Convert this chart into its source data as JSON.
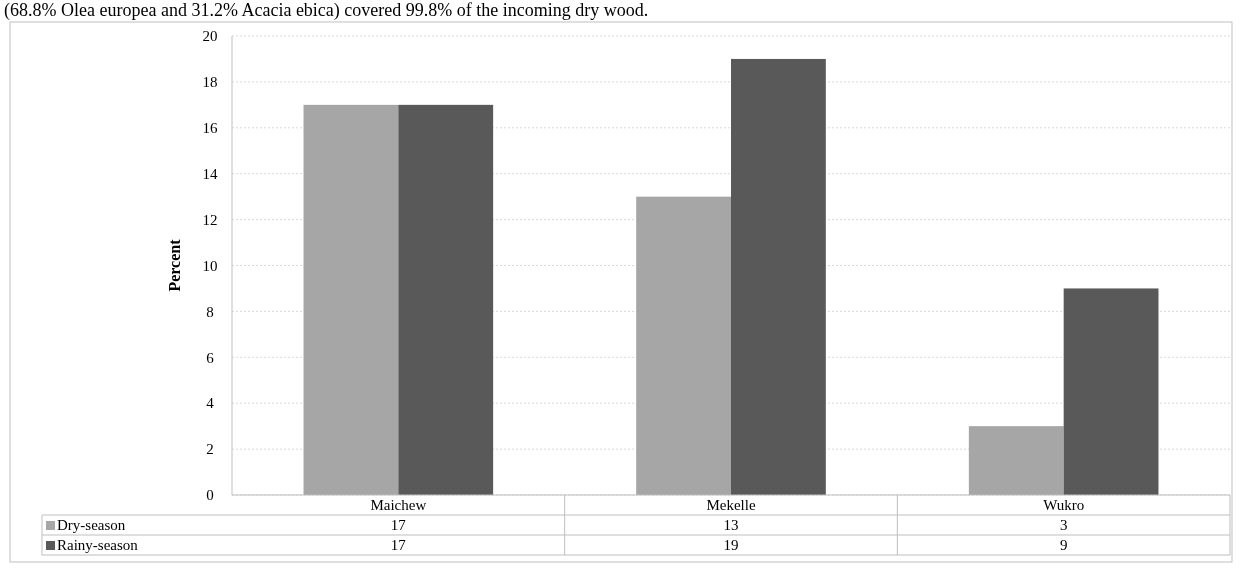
{
  "chart_data": {
    "type": "bar",
    "ylabel": "Percent",
    "categories": [
      "Maichew",
      "Mekelle",
      "Wukro"
    ],
    "series": [
      {
        "name": "Dry-season",
        "color": "#a6a6a6",
        "values": [
          17,
          13,
          3
        ]
      },
      {
        "name": "Rainy-season",
        "color": "#595959",
        "values": [
          17,
          19,
          9
        ]
      }
    ],
    "ylim": [
      0,
      20
    ],
    "yticks": [
      0,
      2,
      4,
      6,
      8,
      10,
      12,
      14,
      16,
      18,
      20
    ],
    "grid": "y",
    "data_labels": true,
    "legend": "bottom",
    "annotations": [
      "(68.8% Olea europea and 31.2% Acacia ebica) covered 99.8% of the incoming dry wood."
    ]
  }
}
